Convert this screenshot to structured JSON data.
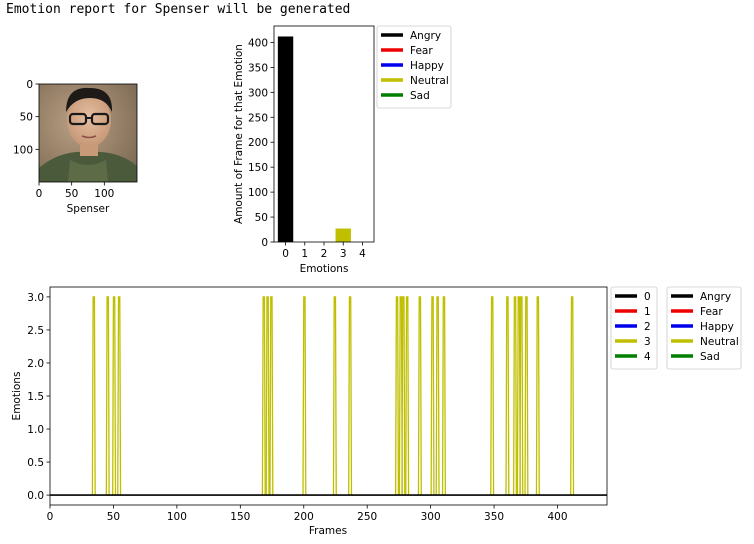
{
  "header": {
    "message": "Emotion report for Spenser will be generated"
  },
  "colors": {
    "angry": "#000000",
    "fear": "#ee0000",
    "happy": "#0000ee",
    "neutral": "#bfbf00",
    "sad": "#007f00"
  },
  "chart_data": [
    {
      "type": "image",
      "id": "photo",
      "xlabel": "Spenser",
      "xticks": [
        0,
        50,
        100
      ],
      "yticks": [
        0,
        50,
        100
      ],
      "xlim": [
        0,
        150
      ],
      "ylim": [
        150,
        0
      ],
      "image_semantic": "portrait-photo-of-spenser"
    },
    {
      "type": "bar",
      "id": "counts",
      "xlabel": "Emotions",
      "ylabel": "Amount of Frame for that Emotion",
      "x": [
        0,
        3
      ],
      "values": [
        412,
        27
      ],
      "bar_colors": [
        "#000000",
        "#bfbf00"
      ],
      "xticks": [
        0,
        1,
        2,
        3,
        4
      ],
      "yticks": [
        0,
        50,
        100,
        150,
        200,
        250,
        300,
        350,
        400
      ],
      "xlim": [
        -0.6,
        4.6
      ],
      "ylim": [
        0,
        433
      ],
      "legend": {
        "placement": "outside-right",
        "entries": [
          {
            "label": "Angry",
            "color": "#000000"
          },
          {
            "label": "Fear",
            "color": "#ee0000"
          },
          {
            "label": "Happy",
            "color": "#0000ee"
          },
          {
            "label": "Neutral",
            "color": "#bfbf00"
          },
          {
            "label": "Sad",
            "color": "#007f00"
          }
        ]
      }
    },
    {
      "type": "line",
      "id": "timeline",
      "xlabel": "Frames",
      "ylabel": "Emotions",
      "xlim": [
        0,
        439
      ],
      "ylim": [
        -0.15,
        3.15
      ],
      "xticks": [
        0,
        50,
        100,
        150,
        200,
        250,
        300,
        350,
        400
      ],
      "yticks": [
        "0.0",
        "0.5",
        "1.0",
        "1.5",
        "2.0",
        "2.5",
        "3.0"
      ],
      "baseline_value": 0,
      "series": [
        {
          "name": "3",
          "color": "#bfbf00",
          "value": 3,
          "spike_frames": [
            34,
            45,
            50,
            54,
            168,
            171,
            174,
            200,
            224,
            236,
            273,
            276,
            278,
            281,
            291,
            301,
            305,
            310,
            348,
            360,
            366,
            369,
            371,
            375,
            384,
            411
          ]
        }
      ],
      "legends": [
        {
          "placement": "outside-right",
          "entries": [
            {
              "label": "0",
              "color": "#000000"
            },
            {
              "label": "1",
              "color": "#ee0000"
            },
            {
              "label": "2",
              "color": "#0000ee"
            },
            {
              "label": "3",
              "color": "#bfbf00"
            },
            {
              "label": "4",
              "color": "#007f00"
            }
          ]
        },
        {
          "placement": "outside-right",
          "entries": [
            {
              "label": "Angry",
              "color": "#000000"
            },
            {
              "label": "Fear",
              "color": "#ee0000"
            },
            {
              "label": "Happy",
              "color": "#0000ee"
            },
            {
              "label": "Neutral",
              "color": "#bfbf00"
            },
            {
              "label": "Sad",
              "color": "#007f00"
            }
          ]
        }
      ]
    }
  ]
}
